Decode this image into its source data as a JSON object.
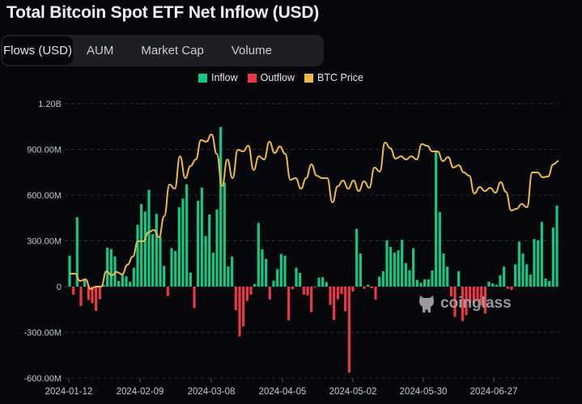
{
  "title": "Total Bitcoin Spot ETF Net Inflow (USD)",
  "tabs": [
    {
      "label": "Flows (USD)",
      "active": true
    },
    {
      "label": "AUM",
      "active": false
    },
    {
      "label": "Market Cap",
      "active": false
    },
    {
      "label": "Volume",
      "active": false
    }
  ],
  "watermark": "coinglass",
  "chart_data": {
    "type": "bar",
    "title": "Total Bitcoin Spot ETF Net Inflow (USD)",
    "legend": [
      {
        "name": "Inflow",
        "color": "#16c784"
      },
      {
        "name": "Outflow",
        "color": "#ea3943"
      },
      {
        "name": "BTC Price",
        "color": "#f0b940"
      }
    ],
    "legend_position": "top-center",
    "grid": true,
    "ylim": [
      -600,
      1200
    ],
    "y_unit": "M USD",
    "y_ticks": [
      "-600.00M",
      "-300.00M",
      "0",
      "300.00M",
      "600.00M",
      "900.00M",
      "1.20B"
    ],
    "y_tick_values": [
      -600,
      -300,
      0,
      300,
      600,
      900,
      1200
    ],
    "x_ticks": [
      "2024-01-12",
      "2024-02-09",
      "2024-03-08",
      "2024-04-05",
      "2024-05-02",
      "2024-05-30",
      "2024-06-27"
    ],
    "flows": [
      203,
      -53,
      455,
      -127,
      44,
      -88,
      -109,
      -159,
      -83,
      12,
      256,
      247,
      198,
      37,
      79,
      67,
      32,
      123,
      406,
      542,
      492,
      635,
      344,
      477,
      330,
      136,
      -62,
      252,
      233,
      521,
      577,
      671,
      92,
      -141,
      563,
      650,
      332,
      473,
      222,
      507,
      1047,
      683,
      132,
      198,
      -155,
      -327,
      -261,
      -94,
      -53,
      18,
      418,
      244,
      182,
      -85,
      39,
      115,
      214,
      203,
      -221,
      -18,
      124,
      90,
      -53,
      -58,
      -168,
      -4,
      58,
      62,
      30,
      -120,
      -219,
      -83,
      -49,
      -162,
      -565,
      -32,
      379,
      217,
      -14,
      12,
      -11,
      -85,
      65,
      101,
      304,
      260,
      222,
      238,
      307,
      154,
      108,
      252,
      44,
      26,
      48,
      48,
      106,
      888,
      489,
      217,
      131,
      -64,
      -199,
      101,
      -226,
      -187,
      -106,
      -109,
      -88,
      -124,
      -177,
      32,
      21,
      12,
      74,
      131,
      -14,
      -21,
      145,
      295,
      217,
      146,
      79,
      312,
      304,
      424,
      53,
      37,
      387,
      531
    ],
    "btc_price": [
      44720,
      44720,
      43280,
      43600,
      41680,
      42160,
      42160,
      45200,
      44400,
      45040,
      44560,
      46480,
      48080,
      51120,
      51120,
      52880,
      53360,
      51920,
      56080,
      62320,
      61520,
      67920,
      63600,
      66000,
      67280,
      71120,
      70800,
      72240,
      68400,
      62000,
      67280,
      63600,
      69200,
      68880,
      70000,
      65200,
      67920,
      67280,
      70800,
      68560,
      69840,
      68400,
      63280,
      63600,
      61520,
      63600,
      66320,
      64080,
      63600,
      63600,
      58800,
      62000,
      63120,
      61520,
      63120,
      61040,
      62960,
      61680,
      65680,
      64880,
      70640,
      69520,
      67440,
      67920,
      67280,
      67920,
      67280,
      70320,
      70000,
      68880,
      68880,
      66960,
      67760,
      65680,
      66160,
      64720,
      64080,
      60560,
      61840,
      61040,
      61680,
      60720,
      62800,
      60880,
      57200,
      57520,
      58480,
      57840,
      64720,
      64720,
      63760,
      63920,
      66320,
      66960
    ]
  }
}
